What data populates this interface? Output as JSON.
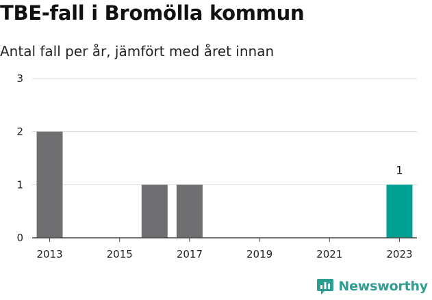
{
  "header": {
    "title": "TBE-fall i Bromölla kommun",
    "subtitle": "Antal fall per år, jämfört med året innan"
  },
  "brand": {
    "name": "Newsworthy",
    "color": "#2f9e92"
  },
  "colors": {
    "bar": "#6f6f72",
    "highlight": "#00a192",
    "grid": "#d9d9d9",
    "axis": "#444444"
  },
  "chart_data": {
    "type": "bar",
    "title": "TBE-fall i Bromölla kommun",
    "subtitle": "Antal fall per år, jämfört med året innan",
    "xlabel": "",
    "ylabel": "",
    "categories": [
      "2013",
      "2014",
      "2015",
      "2016",
      "2017",
      "2018",
      "2019",
      "2020",
      "2021",
      "2022",
      "2023"
    ],
    "values": [
      2,
      0,
      0,
      1,
      1,
      0,
      0,
      0,
      0,
      0,
      1
    ],
    "x_tick_labels": [
      "2013",
      "2015",
      "2017",
      "2019",
      "2021",
      "2023"
    ],
    "y_ticks": [
      0,
      1,
      2,
      3
    ],
    "ylim": [
      0,
      3
    ],
    "highlight_category": "2023",
    "data_labels": [
      {
        "category": "2023",
        "value": 1
      }
    ],
    "grid": true,
    "legend": "none"
  }
}
